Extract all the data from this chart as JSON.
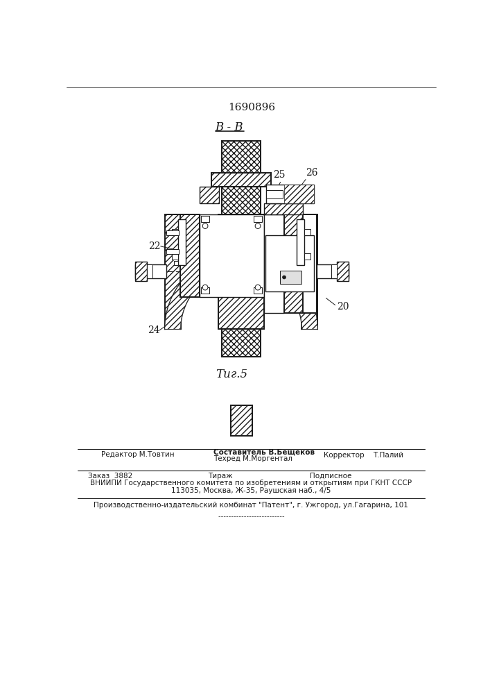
{
  "patent_number": "1690896",
  "section_label": "B - B",
  "figure_label": "Τиг.5",
  "bg_color": "#ffffff",
  "line_color": "#1a1a1a",
  "footer_line1_left": "Редактор М.Товтин",
  "footer_line1_center_top": "Составитель В.Бещеков",
  "footer_line1_center_bot": "Техред М.Моргентал",
  "footer_line1_right_label": "Корректор",
  "footer_line1_right": "Т.Палий",
  "footer_line2_1": "Заказ  3882",
  "footer_line2_2": "Тираж",
  "footer_line2_3": "Подписное",
  "footer_line3": "ВНИИПИ Государственного комитета по изобретениям и открытиям при ГКНТ СССР",
  "footer_line4": "113035, Москва, Ж-35, Раушская наб., 4/5",
  "footer_line5": "Производственно-издательский комбинат \"Патент\", г. Ужгород, ул.Гагарина, 101"
}
